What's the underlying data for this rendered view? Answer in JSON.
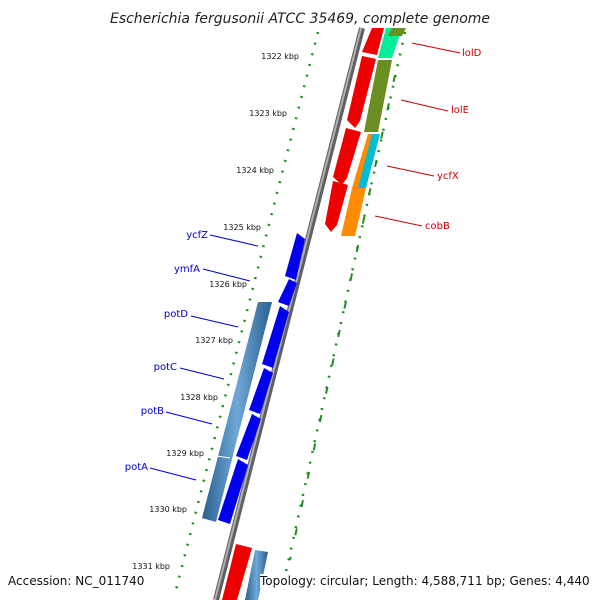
{
  "title": "Escherichia fergusonii ATCC 35469, complete genome",
  "footer": {
    "accession": "Accession: NC_011740",
    "topology": "Topology: circular; Length: 4,588,711 bp; Genes: 4,440"
  },
  "ticks": [
    {
      "label": "1322 kbp"
    },
    {
      "label": "1323 kbp"
    },
    {
      "label": "1324 kbp"
    },
    {
      "label": "1325 kbp"
    },
    {
      "label": "1326 kbp"
    },
    {
      "label": "1327 kbp"
    },
    {
      "label": "1328 kbp"
    },
    {
      "label": "1329 kbp"
    },
    {
      "label": "1330 kbp"
    },
    {
      "label": "1331 kbp"
    }
  ],
  "left_genes": [
    {
      "name": "ycfZ"
    },
    {
      "name": "ymfA"
    },
    {
      "name": "potD"
    },
    {
      "name": "potC"
    },
    {
      "name": "potB"
    },
    {
      "name": "potA"
    }
  ],
  "right_genes": [
    {
      "name": "lolD"
    },
    {
      "name": "lolE"
    },
    {
      "name": "ycfX"
    },
    {
      "name": "cobB"
    }
  ],
  "colors": {
    "forward_cds": "#ee0000",
    "reverse_cds": "#0000ee",
    "operon_bar": "#4682b4",
    "backbone": "#808080",
    "tick_marks": "#228b22",
    "lolD_feature": "#00ee99",
    "lolE_feature": "#6b8e23",
    "ycfX_feature": "#00bcd4",
    "cobB_feature": "#ff8c00",
    "left_label": "#0000cc",
    "right_label": "#cc0000"
  }
}
